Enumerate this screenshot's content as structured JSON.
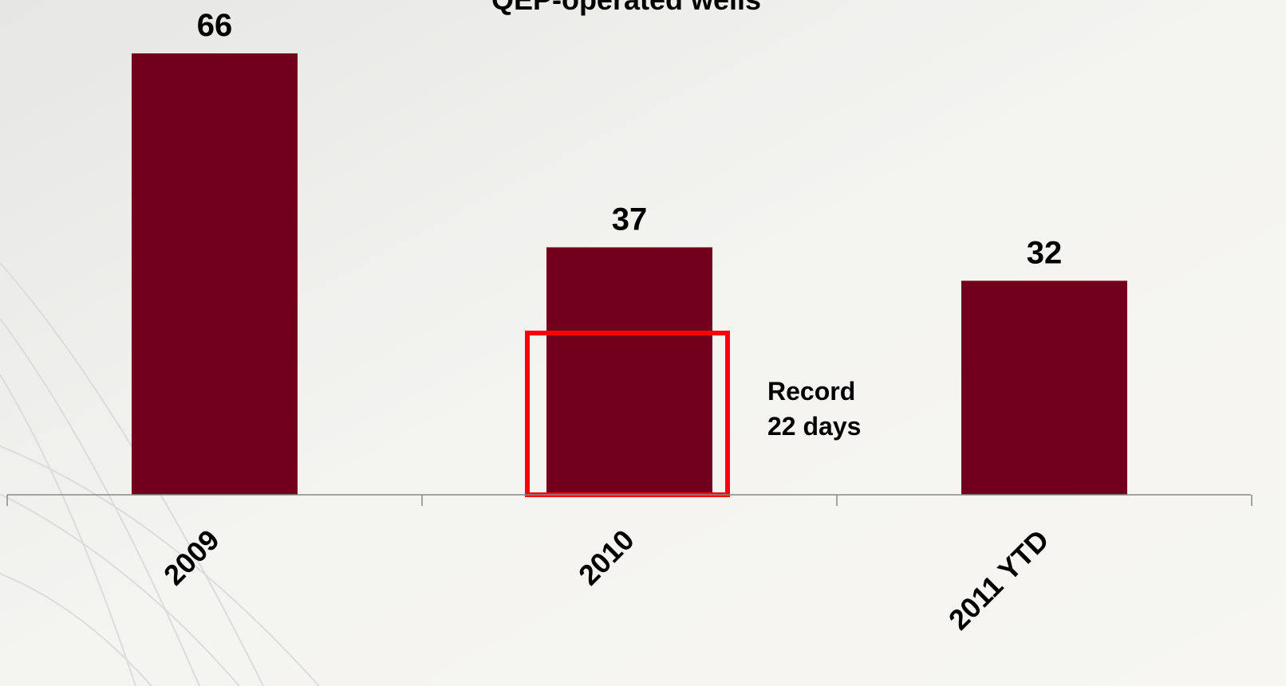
{
  "chart_data": {
    "type": "bar",
    "title": "QEP-operated wells",
    "categories": [
      "2009",
      "2010",
      "2011 YTD"
    ],
    "values": [
      66,
      37,
      32
    ],
    "color": "#72001c",
    "annotation": [
      "Record",
      "22 days"
    ]
  }
}
